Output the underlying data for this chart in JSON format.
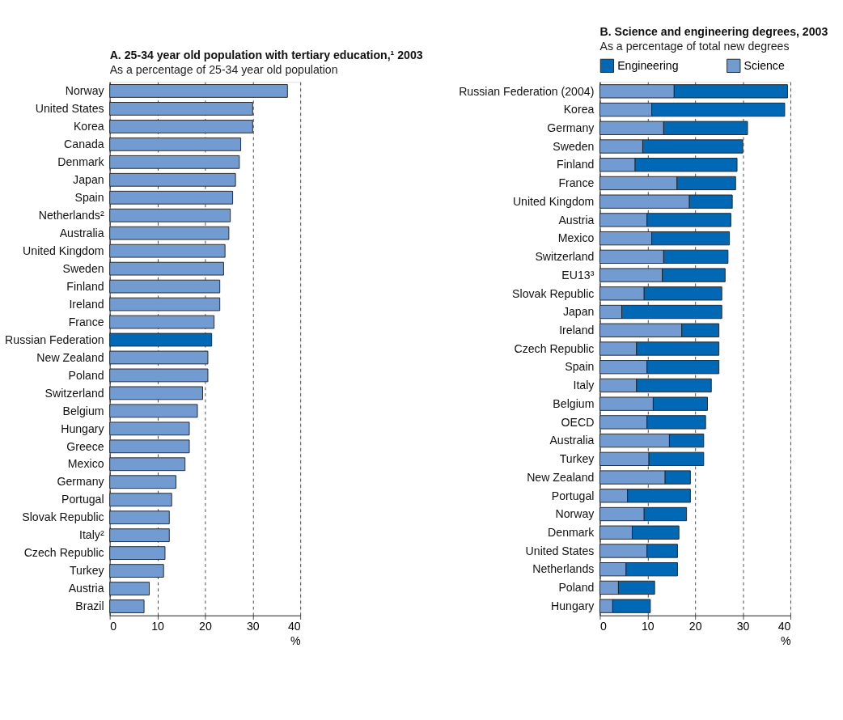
{
  "chart_data": [
    {
      "type": "bar",
      "orientation": "horizontal",
      "title": "A.  25-34 year old population with tertiary education,¹ 2003",
      "subtitle": "As a percentage of 25-34 year old population",
      "xlabel": "%",
      "categories": [
        "Norway",
        "United States",
        "Korea",
        "Canada",
        "Denmark",
        "Japan",
        "Spain",
        "Netherlands²",
        "Australia",
        "United Kingdom",
        "Sweden",
        "Finland",
        "Ireland",
        "France",
        "Russian Federation",
        "New Zealand",
        "Poland",
        "Switzerland",
        "Belgium",
        "Hungary",
        "Greece",
        "Mexico",
        "Germany",
        "Portugal",
        "Slovak Republic",
        "Italy²",
        "Czech Republic",
        "Turkey",
        "Austria",
        "Brazil"
      ],
      "values": [
        37.3,
        30.0,
        30.0,
        27.5,
        27.2,
        26.4,
        25.8,
        25.3,
        25.0,
        24.2,
        23.9,
        23.1,
        23.1,
        21.9,
        21.4,
        20.6,
        20.6,
        19.5,
        18.4,
        16.7,
        16.7,
        15.8,
        13.9,
        13.0,
        12.5,
        12.5,
        11.6,
        11.3,
        8.3,
        7.2
      ],
      "colors": [
        "#729bd1",
        "#729bd1",
        "#729bd1",
        "#729bd1",
        "#729bd1",
        "#729bd1",
        "#729bd1",
        "#729bd1",
        "#729bd1",
        "#729bd1",
        "#729bd1",
        "#729bd1",
        "#729bd1",
        "#729bd1",
        "#0068b4",
        "#729bd1",
        "#729bd1",
        "#729bd1",
        "#729bd1",
        "#729bd1",
        "#729bd1",
        "#729bd1",
        "#729bd1",
        "#729bd1",
        "#729bd1",
        "#729bd1",
        "#729bd1",
        "#729bd1",
        "#729bd1",
        "#729bd1"
      ],
      "xlim": [
        0,
        40
      ],
      "xticks": [
        0,
        10,
        20,
        30,
        40
      ],
      "grid": "x",
      "legend": false
    },
    {
      "type": "bar",
      "orientation": "horizontal",
      "stacked": true,
      "title": "B.  Science and engineering degrees, 2003",
      "subtitle": "As a percentage of total new degrees",
      "xlabel": "%",
      "categories": [
        "Russian Federation (2004)",
        "Korea",
        "Germany",
        "Sweden",
        "Finland",
        "France",
        "United Kingdom",
        "Austria",
        "Mexico",
        "Switzerland",
        "EU13³",
        "Slovak Republic",
        "Japan",
        "Ireland",
        "Czech Republic",
        "Spain",
        "Italy",
        "Belgium",
        "OECD",
        "Australia",
        "Turkey",
        "New Zealand",
        "Portugal",
        "Norway",
        "Denmark",
        "United States",
        "Netherlands",
        "Poland",
        "Hungary"
      ],
      "series": [
        {
          "name": "Science",
          "color": "#729bd1",
          "values": [
            15.6,
            10.9,
            13.4,
            9.0,
            7.4,
            16.2,
            18.8,
            9.9,
            10.9,
            13.4,
            13.1,
            9.3,
            4.6,
            17.2,
            7.7,
            9.9,
            7.7,
            11.2,
            9.9,
            14.6,
            10.3,
            13.7,
            5.8,
            9.3,
            6.8,
            9.9,
            5.5,
            3.9,
            2.7
          ]
        },
        {
          "name": "Engineering",
          "color": "#0068b4",
          "values": [
            23.8,
            27.9,
            17.6,
            21.0,
            21.4,
            12.3,
            9.0,
            17.6,
            16.3,
            13.5,
            13.2,
            16.3,
            21.0,
            7.8,
            17.3,
            15.1,
            15.7,
            11.4,
            12.3,
            7.2,
            11.5,
            5.3,
            13.2,
            8.9,
            9.8,
            6.4,
            10.8,
            7.6,
            7.9
          ]
        }
      ],
      "xlim": [
        0,
        40
      ],
      "xticks": [
        0,
        10,
        20,
        30,
        40
      ],
      "grid": "x",
      "legend": "top"
    }
  ]
}
